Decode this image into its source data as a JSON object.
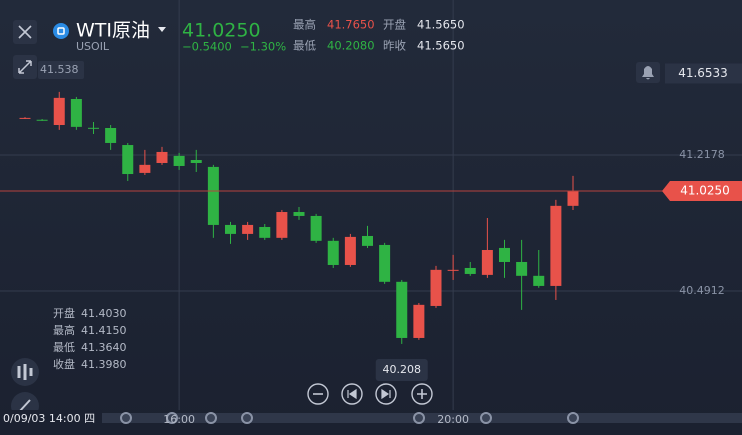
{
  "header": {
    "name": "WTI原油",
    "code": "USOIL",
    "price": "41.0250",
    "change": "−0.5400",
    "change_pct": "−1.30%",
    "stats": [
      {
        "label": "最高",
        "value": "41.7650",
        "color": "#e8524a"
      },
      {
        "label": "开盘",
        "value": "41.5650",
        "color": "#e6e8ee"
      },
      {
        "label": "最低",
        "value": "40.2080",
        "color": "#2fb344"
      },
      {
        "label": "昨收",
        "value": "41.5650",
        "color": "#e6e8ee"
      }
    ]
  },
  "chart_data": {
    "type": "candlestick",
    "categories": [
      null,
      null,
      null,
      null,
      null,
      null,
      null,
      null,
      null,
      "16:00",
      null,
      null,
      null,
      null,
      null,
      null,
      null,
      null,
      null,
      null,
      null,
      null,
      null,
      null,
      null,
      "20:00",
      null,
      null,
      null,
      null,
      null,
      null,
      null
    ],
    "open": [
      41.414,
      41.406,
      41.378,
      41.517,
      41.363,
      41.362,
      41.271,
      41.122,
      41.175,
      41.213,
      41.191,
      41.154,
      40.844,
      40.796,
      40.833,
      40.775,
      40.913,
      40.892,
      40.759,
      40.63,
      40.785,
      40.737,
      40.54,
      40.24,
      40.411,
      40.602,
      40.614,
      40.577,
      40.721,
      40.646,
      40.572,
      40.518,
      40.946
    ],
    "high": [
      41.42,
      41.41,
      41.555,
      41.528,
      41.394,
      41.378,
      41.282,
      41.245,
      41.261,
      41.229,
      41.245,
      41.165,
      40.86,
      40.86,
      40.849,
      40.924,
      40.94,
      40.903,
      40.775,
      40.796,
      40.839,
      40.748,
      40.55,
      40.427,
      40.625,
      40.684,
      40.646,
      40.881,
      40.764,
      40.764,
      40.71,
      40.978,
      41.106
    ],
    "low": [
      41.41,
      41.4,
      41.352,
      41.352,
      41.33,
      41.245,
      41.079,
      41.111,
      41.165,
      41.138,
      41.127,
      40.775,
      40.743,
      40.764,
      40.764,
      40.764,
      40.871,
      40.748,
      40.614,
      40.62,
      40.721,
      40.529,
      40.208,
      40.23,
      40.401,
      40.55,
      40.572,
      40.561,
      40.561,
      40.39,
      40.508,
      40.443,
      40.924
    ],
    "close": [
      41.416,
      41.404,
      41.523,
      41.368,
      41.361,
      41.282,
      41.116,
      41.165,
      41.234,
      41.159,
      41.175,
      40.844,
      40.796,
      40.844,
      40.775,
      40.913,
      40.892,
      40.759,
      40.63,
      40.78,
      40.732,
      40.54,
      40.24,
      40.417,
      40.604,
      40.604,
      40.582,
      40.71,
      40.646,
      40.572,
      40.518,
      40.946,
      41.025
    ],
    "up_color": "#e8524a",
    "down_color": "#2fb344",
    "ylim": [
      39.855,
      42.046
    ],
    "yticks": [
      41.2178,
      40.4912
    ],
    "grid": true,
    "last_price": {
      "value": 41.025,
      "label": "41.0250"
    },
    "alert_price": {
      "value": 41.6533,
      "label": "41.6533"
    },
    "crosshair_low": {
      "value": 40.208,
      "label": "40.208"
    }
  },
  "ui": {
    "left_tag": "41.538",
    "time_tag": "0/09/03 14:00 四",
    "ohlc": [
      {
        "label": "开盘",
        "value": "41.4030"
      },
      {
        "label": "最高",
        "value": "41.4150"
      },
      {
        "label": "最低",
        "value": "41.3640"
      },
      {
        "label": "收盘",
        "value": "41.3980"
      }
    ]
  }
}
